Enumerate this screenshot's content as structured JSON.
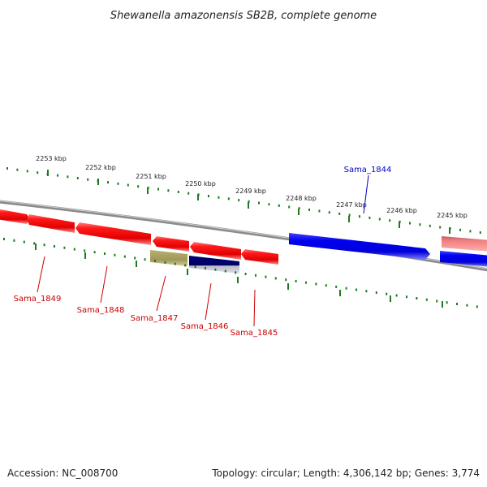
{
  "title": "Shewanella amazonensis SB2B, complete genome",
  "footer": {
    "accession": "Accession: NC_008700",
    "summary": "Topology: circular; Length: 4,306,142 bp; Genes: 3,774"
  },
  "colors": {
    "backbone": "#7a7a7a",
    "tick_green": "#1f7a1f",
    "gene_red": "#ee0000",
    "gene_red_label": "#cc0000",
    "gene_blue": "#0000e0",
    "gene_blue_label": "#0000cc",
    "gene_olive": "#a8a060",
    "gene_navy": "#00006e",
    "gene_pink": "#ee8080"
  },
  "kbp_ticks": [
    {
      "label": "2253 kbp"
    },
    {
      "label": "2252 kbp"
    },
    {
      "label": "2251 kbp"
    },
    {
      "label": "2250 kbp"
    },
    {
      "label": "2249 kbp"
    },
    {
      "label": "2248 kbp"
    },
    {
      "label": "2247 kbp"
    },
    {
      "label": "2246 kbp"
    },
    {
      "label": "2245 kbp"
    }
  ],
  "genes": [
    {
      "label": "Sama_1849",
      "color": "red"
    },
    {
      "label": "Sama_1848",
      "color": "red"
    },
    {
      "label": "Sama_1847",
      "color": "olive"
    },
    {
      "label": "Sama_1846",
      "color": "navy"
    },
    {
      "label": "Sama_1845",
      "color": "red"
    },
    {
      "label": "Sama_1844",
      "color": "blue"
    }
  ]
}
